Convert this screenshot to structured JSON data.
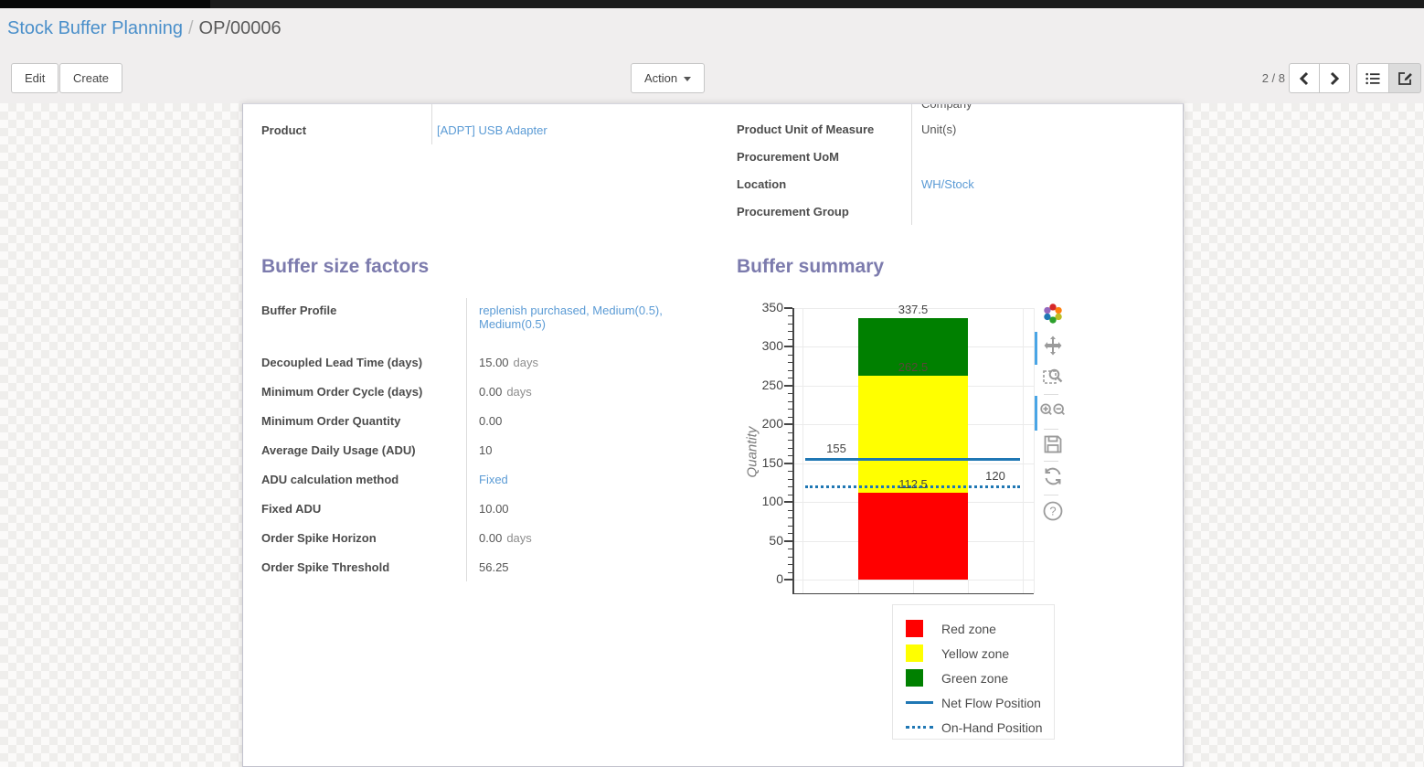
{
  "breadcrumb": {
    "parent": "Stock Buffer Planning",
    "separator": "/",
    "current": "OP/00006"
  },
  "toolbar": {
    "edit_label": "Edit",
    "create_label": "Create",
    "action_label": "Action",
    "pager": "2 / 8"
  },
  "view_switcher": {
    "icons": [
      "list-view-icon",
      "form-view-icon"
    ],
    "active": "form-view-icon"
  },
  "sheet": {
    "clipped_top_value": "Company",
    "info_left": [
      {
        "label": "Product",
        "value": "[ADPT] USB Adapter",
        "link": true
      }
    ],
    "info_right": [
      {
        "label": "Product Unit of Measure",
        "value": "Unit(s)",
        "link": false
      },
      {
        "label": "Procurement UoM",
        "value": "",
        "link": false
      },
      {
        "label": "Location",
        "value": "WH/Stock",
        "link": true
      },
      {
        "label": "Procurement Group",
        "value": "",
        "link": false
      }
    ],
    "factors": {
      "title": "Buffer size factors",
      "rows": [
        {
          "label": "Buffer Profile",
          "value": "replenish purchased, Medium(0.5), Medium(0.5)",
          "link": true,
          "tall": true
        },
        {
          "label": "Decoupled Lead Time (days)",
          "value": "15.00",
          "suffix": "days"
        },
        {
          "label": "Minimum Order Cycle (days)",
          "value": "0.00",
          "suffix": "days"
        },
        {
          "label": "Minimum Order Quantity",
          "value": "0.00"
        },
        {
          "label": "Average Daily Usage (ADU)",
          "value": "10"
        },
        {
          "label": "ADU calculation method",
          "value": "Fixed",
          "link": true
        },
        {
          "label": "Fixed ADU",
          "value": "10.00"
        },
        {
          "label": "Order Spike Horizon",
          "value": "0.00",
          "suffix": "days"
        },
        {
          "label": "Order Spike Threshold",
          "value": "56.25"
        }
      ]
    },
    "summary_title": "Buffer summary"
  },
  "chart_data": {
    "type": "bar",
    "title": "Buffer summary",
    "xlabel": "",
    "ylabel": "Quantity",
    "ylim": [
      0,
      350
    ],
    "yticks": [
      0,
      50,
      100,
      150,
      200,
      250,
      300,
      350
    ],
    "minor_tick_step": 10,
    "grid": true,
    "zones": [
      {
        "name": "Red zone",
        "from": 0,
        "to": 112.5,
        "color": "#ff0000"
      },
      {
        "name": "Yellow zone",
        "from": 112.5,
        "to": 262.5,
        "color": "#ffff00"
      },
      {
        "name": "Green zone",
        "from": 262.5,
        "to": 337.5,
        "color": "#008000"
      }
    ],
    "zone_labels": [
      {
        "text": "337.5",
        "value": 337.5,
        "color": "#444444"
      },
      {
        "text": "262.5",
        "value": 262.5,
        "color": "#5a4638"
      },
      {
        "text": "112.5",
        "value": 112.5,
        "color": "#444444"
      }
    ],
    "lines": [
      {
        "name": "Net Flow Position",
        "value": 155,
        "style": "solid",
        "color": "#1f77b4",
        "label": "155",
        "label_side": "left"
      },
      {
        "name": "On-Hand Position",
        "value": 120,
        "style": "dotted",
        "color": "#1f77b4",
        "label": "120",
        "label_side": "right"
      }
    ],
    "legend": [
      "Red zone",
      "Yellow zone",
      "Green zone",
      "Net Flow Position",
      "On-Hand Position"
    ],
    "legend_position": "below-right"
  },
  "modebar_icons": [
    "plotly-logo-icon",
    "pan-icon",
    "box-zoom-icon",
    "zoom-in-out-icon",
    "save-image-icon",
    "reset-axes-icon",
    "help-icon"
  ],
  "colors": {
    "accent_purple": "#7c7bad",
    "link_blue": "#5b9bd5",
    "breadcrumb_blue": "#4a8fca",
    "red_zone": "#ff0000",
    "yellow_zone": "#ffff00",
    "green_zone": "#008000",
    "line_blue": "#1f77b4"
  }
}
